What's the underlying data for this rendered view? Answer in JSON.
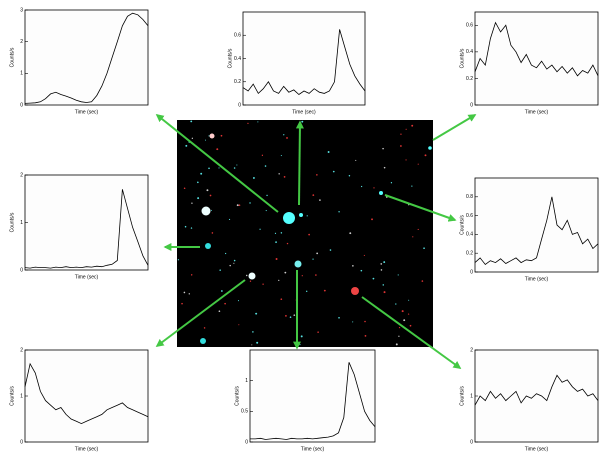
{
  "chart_data": [
    {
      "type": "line",
      "xlabel": "Time (sec)",
      "ylabel": "Counts/s",
      "color": "#000000",
      "x": [
        0,
        1,
        2,
        3,
        4,
        5,
        6,
        7,
        8,
        9,
        10,
        11,
        12,
        13,
        14,
        15,
        16,
        17,
        18,
        19,
        20,
        21,
        22,
        23,
        24
      ],
      "values": [
        0.05,
        0.06,
        0.07,
        0.1,
        0.2,
        0.35,
        0.4,
        0.33,
        0.28,
        0.22,
        0.15,
        0.1,
        0.08,
        0.1,
        0.3,
        0.6,
        1.0,
        1.5,
        2.0,
        2.5,
        2.8,
        2.9,
        2.85,
        2.7,
        2.5
      ],
      "xlim": [
        0,
        24
      ],
      "ylim": [
        0,
        3
      ],
      "yticks": [
        0,
        1,
        2,
        3
      ]
    },
    {
      "type": "line",
      "xlabel": "Time (sec)",
      "ylabel": "Counts/s",
      "color": "#000000",
      "x": [
        0,
        1,
        2,
        3,
        4,
        5,
        6,
        7,
        8,
        9,
        10,
        11,
        12,
        13,
        14,
        15,
        16,
        17,
        18,
        19,
        20,
        21,
        22,
        23,
        24
      ],
      "values": [
        0.15,
        0.12,
        0.18,
        0.1,
        0.14,
        0.2,
        0.12,
        0.1,
        0.16,
        0.11,
        0.13,
        0.09,
        0.12,
        0.1,
        0.14,
        0.11,
        0.1,
        0.12,
        0.2,
        0.65,
        0.5,
        0.35,
        0.25,
        0.18,
        0.12
      ],
      "xlim": [
        0,
        24
      ],
      "ylim": [
        0,
        0.8
      ],
      "yticks": [
        0,
        0.2,
        0.4,
        0.6
      ]
    },
    {
      "type": "line",
      "xlabel": "Time (sec)",
      "ylabel": "Counts/s",
      "color": "#000000",
      "x": [
        0,
        1,
        2,
        3,
        4,
        5,
        6,
        7,
        8,
        9,
        10,
        11,
        12,
        13,
        14,
        15,
        16,
        17,
        18,
        19,
        20,
        21,
        22,
        23,
        24
      ],
      "values": [
        0.25,
        0.35,
        0.3,
        0.5,
        0.62,
        0.55,
        0.6,
        0.45,
        0.4,
        0.32,
        0.38,
        0.3,
        0.28,
        0.33,
        0.27,
        0.3,
        0.25,
        0.29,
        0.24,
        0.28,
        0.22,
        0.26,
        0.24,
        0.3,
        0.22
      ],
      "xlim": [
        0,
        24
      ],
      "ylim": [
        0,
        0.7
      ],
      "yticks": [
        0,
        0.2,
        0.4,
        0.6
      ]
    },
    {
      "type": "line",
      "xlabel": "Time (sec)",
      "ylabel": "Counts/s",
      "color": "#000000",
      "x": [
        0,
        1,
        2,
        3,
        4,
        5,
        6,
        7,
        8,
        9,
        10,
        11,
        12,
        13,
        14,
        15,
        16,
        17,
        18,
        19,
        20,
        21,
        22,
        23,
        24
      ],
      "values": [
        0.05,
        0.04,
        0.06,
        0.05,
        0.05,
        0.04,
        0.06,
        0.05,
        0.07,
        0.05,
        0.06,
        0.05,
        0.07,
        0.06,
        0.08,
        0.07,
        0.1,
        0.12,
        0.2,
        1.7,
        1.3,
        0.9,
        0.6,
        0.3,
        0.1
      ],
      "xlim": [
        0,
        24
      ],
      "ylim": [
        0,
        2
      ],
      "yticks": [
        0,
        1,
        2
      ]
    },
    {
      "type": "line",
      "xlabel": "Time (sec)",
      "ylabel": "Counts/s",
      "color": "#000000",
      "x": [
        0,
        1,
        2,
        3,
        4,
        5,
        6,
        7,
        8,
        9,
        10,
        11,
        12,
        13,
        14,
        15,
        16,
        17,
        18,
        19,
        20,
        21,
        22,
        23,
        24
      ],
      "values": [
        0.1,
        0.15,
        0.08,
        0.12,
        0.1,
        0.14,
        0.09,
        0.12,
        0.15,
        0.1,
        0.13,
        0.12,
        0.15,
        0.35,
        0.55,
        0.8,
        0.5,
        0.45,
        0.55,
        0.4,
        0.42,
        0.3,
        0.35,
        0.25,
        0.3
      ],
      "xlim": [
        0,
        24
      ],
      "ylim": [
        0,
        1
      ],
      "yticks": [
        0,
        0.2,
        0.4,
        0.6,
        0.8
      ]
    },
    {
      "type": "line",
      "xlabel": "Time (sec)",
      "ylabel": "Counts/s",
      "color": "#000000",
      "x": [
        0,
        1,
        2,
        3,
        4,
        5,
        6,
        7,
        8,
        9,
        10,
        11,
        12,
        13,
        14,
        15,
        16,
        17,
        18,
        19,
        20,
        21,
        22,
        23,
        24
      ],
      "values": [
        1.2,
        1.7,
        1.5,
        1.1,
        0.9,
        0.8,
        0.7,
        0.75,
        0.6,
        0.5,
        0.45,
        0.4,
        0.45,
        0.5,
        0.55,
        0.6,
        0.7,
        0.75,
        0.8,
        0.85,
        0.75,
        0.7,
        0.65,
        0.6,
        0.55
      ],
      "xlim": [
        0,
        24
      ],
      "ylim": [
        0,
        2
      ],
      "yticks": [
        0,
        1,
        2
      ]
    },
    {
      "type": "line",
      "xlabel": "Time (sec)",
      "ylabel": "Counts/s",
      "color": "#000000",
      "x": [
        0,
        1,
        2,
        3,
        4,
        5,
        6,
        7,
        8,
        9,
        10,
        11,
        12,
        13,
        14,
        15,
        16,
        17,
        18,
        19,
        20,
        21,
        22,
        23,
        24
      ],
      "values": [
        0.05,
        0.05,
        0.06,
        0.04,
        0.05,
        0.06,
        0.05,
        0.04,
        0.06,
        0.05,
        0.05,
        0.06,
        0.05,
        0.06,
        0.07,
        0.08,
        0.1,
        0.15,
        0.4,
        1.3,
        1.1,
        0.8,
        0.5,
        0.35,
        0.25
      ],
      "xlim": [
        0,
        24
      ],
      "ylim": [
        0,
        1.5
      ],
      "yticks": [
        0,
        0.5,
        1
      ]
    },
    {
      "type": "line",
      "xlabel": "Time (sec)",
      "ylabel": "Counts/s",
      "color": "#000000",
      "x": [
        0,
        1,
        2,
        3,
        4,
        5,
        6,
        7,
        8,
        9,
        10,
        11,
        12,
        13,
        14,
        15,
        16,
        17,
        18,
        19,
        20,
        21,
        22,
        23,
        24
      ],
      "values": [
        0.8,
        1.0,
        0.9,
        1.1,
        0.95,
        1.05,
        0.9,
        1.0,
        1.1,
        0.85,
        1.0,
        0.95,
        1.05,
        1.0,
        0.9,
        1.2,
        1.45,
        1.3,
        1.35,
        1.2,
        1.1,
        1.15,
        1.0,
        1.05,
        0.9
      ],
      "xlim": [
        0,
        24
      ],
      "ylim": [
        0,
        2
      ],
      "yticks": [
        0,
        1,
        2
      ]
    }
  ]
}
